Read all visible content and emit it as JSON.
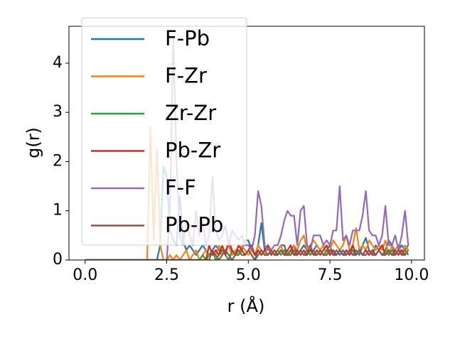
{
  "chart_data": {
    "type": "line",
    "x_label": "r (Å)",
    "y_label": "g(r)",
    "x": [
      0.0,
      0.1,
      0.2,
      0.3,
      0.4,
      0.5,
      0.6,
      0.7,
      0.8,
      0.9,
      1.0,
      1.1,
      1.2,
      1.3,
      1.4,
      1.5,
      1.6,
      1.7,
      1.8,
      1.9,
      2.0,
      2.1,
      2.2,
      2.3,
      2.4,
      2.5,
      2.6,
      2.7,
      2.8,
      2.9,
      3.0,
      3.1,
      3.2,
      3.3,
      3.4,
      3.5,
      3.6,
      3.7,
      3.8,
      3.9,
      4.0,
      4.1,
      4.2,
      4.3,
      4.4,
      4.5,
      4.6,
      4.7,
      4.8,
      4.9,
      5.0,
      5.1,
      5.2,
      5.3,
      5.4,
      5.5,
      5.6,
      5.7,
      5.8,
      5.9,
      6.0,
      6.1,
      6.2,
      6.3,
      6.4,
      6.5,
      6.6,
      6.7,
      6.8,
      6.9,
      7.0,
      7.1,
      7.2,
      7.3,
      7.4,
      7.5,
      7.6,
      7.7,
      7.8,
      7.9,
      8.0,
      8.1,
      8.2,
      8.3,
      8.4,
      8.5,
      8.6,
      8.7,
      8.8,
      8.9,
      9.0,
      9.1,
      9.2,
      9.3,
      9.4,
      9.5,
      9.6,
      9.7,
      9.8,
      9.9
    ],
    "series": [
      {
        "name": "F-Pb",
        "color": "#1f77b4",
        "values": [
          0,
          0,
          0,
          0,
          0,
          0,
          0,
          0,
          0,
          0,
          0,
          0,
          0,
          0,
          0,
          0,
          0,
          0,
          0,
          0,
          0,
          0,
          0,
          0.3,
          1.9,
          1.7,
          0.6,
          0.4,
          0.3,
          1.3,
          0.4,
          0.2,
          0.3,
          0.2,
          0.1,
          0.2,
          0.3,
          0.2,
          0.1,
          0.2,
          0.3,
          0.2,
          0.1,
          0.2,
          0.3,
          0.2,
          0.1,
          0.3,
          0.2,
          0.4,
          0.4,
          0.2,
          0.1,
          0.3,
          0.75,
          0.2,
          0.1,
          0.2,
          0.1,
          0.2,
          0.3,
          0.3,
          0.1,
          0.2,
          0.3,
          0.1,
          0.2,
          0.3,
          0.2,
          0.1,
          0.2,
          0.3,
          0.2,
          0.1,
          0.2,
          0.3,
          0.1,
          0.2,
          0.1,
          0.2,
          0.1,
          0.2,
          0.1,
          0.2,
          0.1,
          0.3,
          0.45,
          0.2,
          0.1,
          0.3,
          0.2,
          0.1,
          0.2,
          0.4,
          0.3,
          0.1,
          0.2,
          0.3,
          0.2,
          0.3
        ]
      },
      {
        "name": "F-Zr",
        "color": "#ff7f0e",
        "values": [
          0,
          0,
          0,
          0,
          0,
          0,
          0,
          0,
          0,
          0,
          0,
          0,
          0,
          0,
          0,
          0,
          0,
          0,
          0,
          0,
          2.7,
          0.4,
          2.25,
          0.3,
          0,
          0,
          0.1,
          0,
          0.1,
          0,
          0.1,
          0.2,
          0,
          0.1,
          0.2,
          0,
          0.1,
          0.2,
          0.1,
          0.2,
          0.1,
          0.3,
          0.1,
          0.2,
          0.3,
          0.1,
          0.2,
          0.1,
          0.3,
          0.2,
          0.1,
          0.2,
          0.1,
          0.3,
          0.2,
          0.1,
          0.3,
          0.2,
          0.1,
          0.2,
          0.3,
          0.1,
          0.2,
          0.1,
          0.3,
          0.2,
          0.4,
          0.5,
          0.2,
          0.3,
          0.4,
          0.3,
          0.2,
          0.3,
          0.1,
          0.2,
          0.4,
          0.3,
          0.2,
          0.3,
          0.5,
          0.2,
          0.3,
          0.65,
          0.2,
          0.3,
          0.2,
          0.4,
          0.3,
          0.2,
          0.3,
          0.2,
          0.4,
          0.1,
          0.3,
          0.2,
          0.3,
          0.1,
          0.3,
          0.2
        ]
      },
      {
        "name": "Zr-Zr",
        "color": "#2ca02c",
        "values": [
          0,
          0,
          0,
          0,
          0,
          0,
          0,
          0,
          0,
          0,
          0,
          0,
          0,
          0,
          0,
          0,
          0,
          0,
          0,
          0,
          0,
          0,
          0,
          0,
          0,
          0,
          0,
          0,
          0,
          0,
          0,
          0,
          0,
          0,
          0,
          0,
          0.1,
          0,
          0.1,
          0.2,
          0,
          0.1,
          0.2,
          0.1,
          0,
          0.2,
          0.1,
          0.1,
          0.2,
          0.1,
          0.2,
          0.1,
          0,
          0.2,
          0.1,
          0.2,
          0.1,
          0.2,
          0.1,
          0.2,
          0.1,
          0.2,
          0.1,
          0.1,
          0.2,
          0.1,
          0.2,
          0.1,
          0.2,
          0.1,
          0.2,
          0.1,
          0.2,
          0.1,
          0.2,
          0.1,
          0.2,
          0.1,
          0.2,
          0.1,
          0.2,
          0.1,
          0.2,
          0.1,
          0.2,
          0.1,
          0.2,
          0.1,
          0.2,
          0.1,
          0.2,
          0.1,
          0.2,
          0.1,
          0.2,
          0.1,
          0.2,
          0.1,
          0.2,
          0.1
        ]
      },
      {
        "name": "Pb-Zr",
        "color": "#d62728",
        "values": [
          0,
          0,
          0,
          0,
          0,
          0,
          0,
          0,
          0,
          0,
          0,
          0,
          0,
          0,
          0,
          0,
          0,
          0,
          0,
          0,
          0,
          0,
          0,
          0,
          0,
          0,
          0,
          0,
          0,
          0,
          0,
          0,
          0,
          0,
          0,
          0,
          0,
          0,
          0.3,
          0.1,
          0.2,
          0.1,
          0.3,
          0.1,
          0.4,
          0.2,
          0.1,
          0.3,
          0.2,
          0.1,
          0.2,
          0.3,
          0.1,
          0.2,
          0.1,
          0.2,
          0.3,
          0.1,
          0.2,
          0.1,
          0.2,
          0.1,
          0.2,
          0.3,
          0.1,
          0.2,
          0.1,
          0.2,
          0.1,
          0.3,
          0.1,
          0.2,
          0.1,
          0.2,
          0.3,
          0.1,
          0.2,
          0.1,
          0.2,
          0.1,
          0.2,
          0.1,
          0.3,
          0.1,
          0.2,
          0.1,
          0.2,
          0.1,
          0.2,
          0.1,
          0.2,
          0.3,
          0.1,
          0.2,
          0.1,
          0.2,
          0.1,
          0.2,
          0.1,
          0.2
        ]
      },
      {
        "name": "F-F",
        "color": "#9467bd",
        "values": [
          0,
          0,
          0,
          0,
          0,
          0,
          0,
          0,
          0,
          0,
          0,
          0,
          0,
          0,
          0,
          0,
          0,
          0,
          0,
          0,
          0,
          0,
          0,
          0,
          0,
          0,
          1.0,
          4.5,
          2.0,
          0.5,
          0.3,
          0.8,
          0.5,
          0.3,
          1.0,
          0.5,
          0.8,
          0.3,
          0.5,
          1.7,
          0.6,
          0.4,
          0.5,
          0.7,
          0.3,
          0.6,
          0.5,
          0.4,
          0.5,
          0.3,
          0.3,
          0.2,
          0.5,
          1.4,
          1.1,
          0.3,
          0.2,
          0.2,
          0.3,
          0.3,
          0.5,
          0.8,
          1.0,
          0.9,
          0.9,
          0.3,
          1.0,
          1.1,
          0.3,
          0.2,
          0.5,
          0.5,
          0.5,
          0.3,
          0.4,
          0.3,
          0.6,
          0.6,
          1.5,
          0.4,
          0.5,
          0.3,
          0.6,
          0.6,
          0.6,
          0.9,
          1.4,
          0.6,
          0.5,
          0.5,
          0.3,
          0.5,
          1.1,
          0.3,
          0.3,
          0.5,
          0.2,
          0.5,
          1.0,
          0.3
        ]
      },
      {
        "name": "Pb-Pb",
        "color": "#8c564b",
        "values": [
          0,
          0,
          0,
          0,
          0,
          0,
          0,
          0,
          0,
          0,
          0,
          0,
          0,
          0,
          0,
          0,
          0,
          0,
          0,
          0,
          0,
          0,
          0,
          0,
          0,
          0,
          0,
          0,
          0,
          0,
          0,
          0,
          0,
          0,
          0,
          0,
          0,
          0,
          0,
          0.2,
          0.1,
          0,
          0.1,
          0.2,
          0.1,
          0,
          0.1,
          0.2,
          0.1,
          0.1,
          0.2,
          0.1,
          0,
          0.1,
          0.2,
          0.1,
          0.1,
          0.2,
          0.1,
          0.1,
          0.2,
          0.1,
          0.1,
          0.2,
          0.1,
          0.1,
          0.2,
          0.1,
          0.1,
          0.2,
          0.1,
          0.1,
          0.2,
          0.1,
          0.1,
          0.2,
          0.1,
          0.1,
          0.2,
          0.1,
          0.1,
          0.2,
          0.1,
          0.1,
          0.2,
          0.1,
          0.1,
          0.2,
          0.1,
          0.1,
          0.2,
          0.1,
          0.1,
          0.2,
          0.1,
          0.1,
          0.2,
          0.1,
          0.1,
          0.2
        ]
      }
    ],
    "xlim": [
      -0.495,
      10.395
    ],
    "ylim": [
      0,
      4.75
    ],
    "xticks": [
      {
        "value": 0,
        "label": "0.0"
      },
      {
        "value": 2.5,
        "label": "2.5"
      },
      {
        "value": 5,
        "label": "5.0"
      },
      {
        "value": 7.5,
        "label": "7.5"
      },
      {
        "value": 10,
        "label": "10.0"
      }
    ],
    "yticks": [
      0,
      1,
      2,
      3,
      4
    ],
    "legend": "upper left"
  }
}
